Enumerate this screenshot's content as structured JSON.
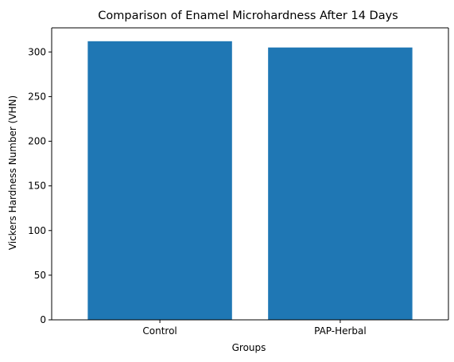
{
  "chart_data": {
    "type": "bar",
    "title": "Comparison of Enamel Microhardness After 14 Days",
    "xlabel": "Groups",
    "ylabel": "Vickers Hardness Number (VHN)",
    "categories": [
      "Control",
      "PAP-Herbal"
    ],
    "values": [
      312,
      305
    ],
    "ylim": [
      0,
      327
    ],
    "yticks": [
      0,
      50,
      100,
      150,
      200,
      250,
      300
    ],
    "grid": false,
    "legend": "none",
    "bar_color": "#1f77b4"
  }
}
